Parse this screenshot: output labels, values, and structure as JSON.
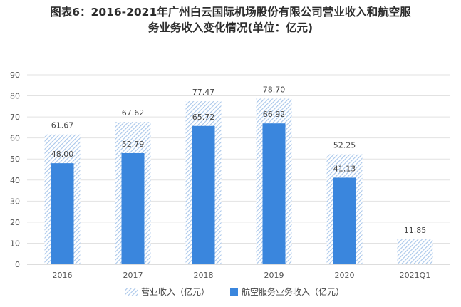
{
  "title": {
    "line1": "图表6：2016-2021年广州白云国际机场股份有限公司营业收入和航空服",
    "line2": "务业务收入变化情况(单位：亿元)"
  },
  "colors": {
    "revenue_hatch": "#a8c6ea",
    "aviation_bar": "#3a86dd",
    "grid": "#e2e2e2",
    "axis": "#bbbbbb"
  },
  "chart_data": {
    "type": "bar",
    "categories": [
      "2016",
      "2017",
      "2018",
      "2019",
      "2020",
      "2021Q1"
    ],
    "series": [
      {
        "name": "营业收入（亿元）",
        "values": [
          61.67,
          67.62,
          77.47,
          78.7,
          52.25,
          11.85
        ],
        "labels": [
          "61.67",
          "67.62",
          "77.47",
          "78.70",
          "52.25",
          "11.85"
        ]
      },
      {
        "name": "航空服务业务收入（亿元）",
        "values": [
          48.0,
          52.79,
          65.72,
          66.92,
          41.13,
          null
        ],
        "labels": [
          "48.00",
          "52.79",
          "65.72",
          "66.92",
          "41.13",
          null
        ]
      }
    ],
    "ylim": [
      0,
      90
    ],
    "yticks": [
      0,
      10,
      20,
      30,
      40,
      50,
      60,
      70,
      80,
      90
    ],
    "ytick_labels": [
      "0",
      "10",
      "20",
      "30",
      "40",
      "50",
      "60",
      "70",
      "80",
      "90"
    ],
    "grid": true,
    "legend": "bottom"
  }
}
